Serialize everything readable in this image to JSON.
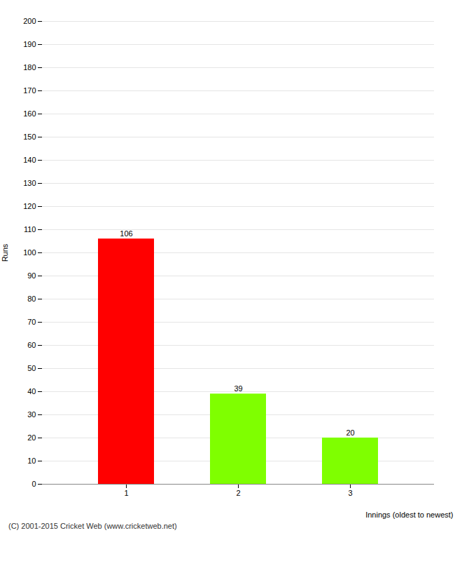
{
  "chart_data": {
    "type": "bar",
    "categories": [
      "1",
      "2",
      "3"
    ],
    "values": [
      106,
      39,
      20
    ],
    "colors": [
      "#ff0000",
      "#7fff00",
      "#7fff00"
    ],
    "xlabel": "Innings (oldest to newest)",
    "ylabel": "Runs",
    "ylim": [
      0,
      200
    ],
    "yticks": [
      0,
      10,
      20,
      30,
      40,
      50,
      60,
      70,
      80,
      90,
      100,
      110,
      120,
      130,
      140,
      150,
      160,
      170,
      180,
      190,
      200
    ],
    "grid": true,
    "data_labels": true,
    "annotations": [
      "(C) 2001-2015 Cricket Web (www.cricketweb.net)"
    ]
  }
}
